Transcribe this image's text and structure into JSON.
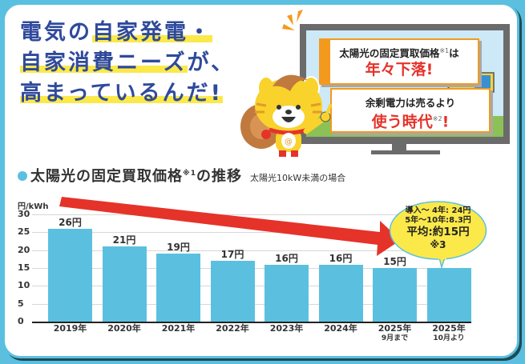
{
  "headline": {
    "line1_plain": "電気の",
    "line1_highlight": "自家発電・",
    "line2_highlight": "自家消費ニーズ",
    "line2_plain": "が、",
    "line3_highlight": "高まっているんだ!"
  },
  "tv": {
    "panel1_small": "太陽光の固定買取価格",
    "panel1_note": "※1",
    "panel1_small_tail": "は",
    "panel1_big": "年々下落!",
    "panel2_small": "余剰電力は売るより",
    "panel2_big": "使う時代",
    "panel2_note": "※2",
    "panel2_big_tail": "!"
  },
  "chart_header": {
    "title": "太陽光の固定買取価格",
    "note": "※1",
    "title_tail": "の推移",
    "subtitle": "太陽光10kW未満の場合"
  },
  "bubble": {
    "line1": "導入〜 4年: 24円",
    "line2": "5年〜10年:8.3円",
    "line3": "平均:約15円",
    "line4": "※3"
  },
  "colors": {
    "bar": "#5bc0e0",
    "arrow": "#e5332a",
    "headline": "#2f4a9c",
    "highlight": "#fbe94a",
    "bubble": "#fbe94a"
  },
  "chart_data": {
    "type": "bar",
    "title": "太陽光の固定買取価格※1の推移",
    "subtitle": "太陽光10kW未満の場合",
    "ylabel": "円/kWh",
    "xlabel": "",
    "ylim": [
      0,
      30
    ],
    "yticks": [
      "30",
      "25",
      "20",
      "15",
      "10",
      "5",
      "0"
    ],
    "grid": true,
    "categories": [
      "2019年",
      "2020年",
      "2021年",
      "2022年",
      "2023年",
      "2024年",
      "2025年 9月まで",
      "2025年 10月より"
    ],
    "x_labels": [
      {
        "main": "2019年",
        "sub": ""
      },
      {
        "main": "2020年",
        "sub": ""
      },
      {
        "main": "2021年",
        "sub": ""
      },
      {
        "main": "2022年",
        "sub": ""
      },
      {
        "main": "2023年",
        "sub": ""
      },
      {
        "main": "2024年",
        "sub": ""
      },
      {
        "main": "2025年",
        "sub": "9月まで"
      },
      {
        "main": "2025年",
        "sub": "10月より"
      }
    ],
    "values": [
      26,
      21,
      19,
      17,
      16,
      16,
      15,
      15
    ],
    "data_labels": [
      "26円",
      "21円",
      "19円",
      "17円",
      "16円",
      "16円",
      "15円",
      ""
    ],
    "annotation": "導入〜4年: 24円 / 5年〜10年: 8.3円 / 平均: 約15円 ※3",
    "trend_arrow": "downward red arrow from 2019 to 2025"
  }
}
